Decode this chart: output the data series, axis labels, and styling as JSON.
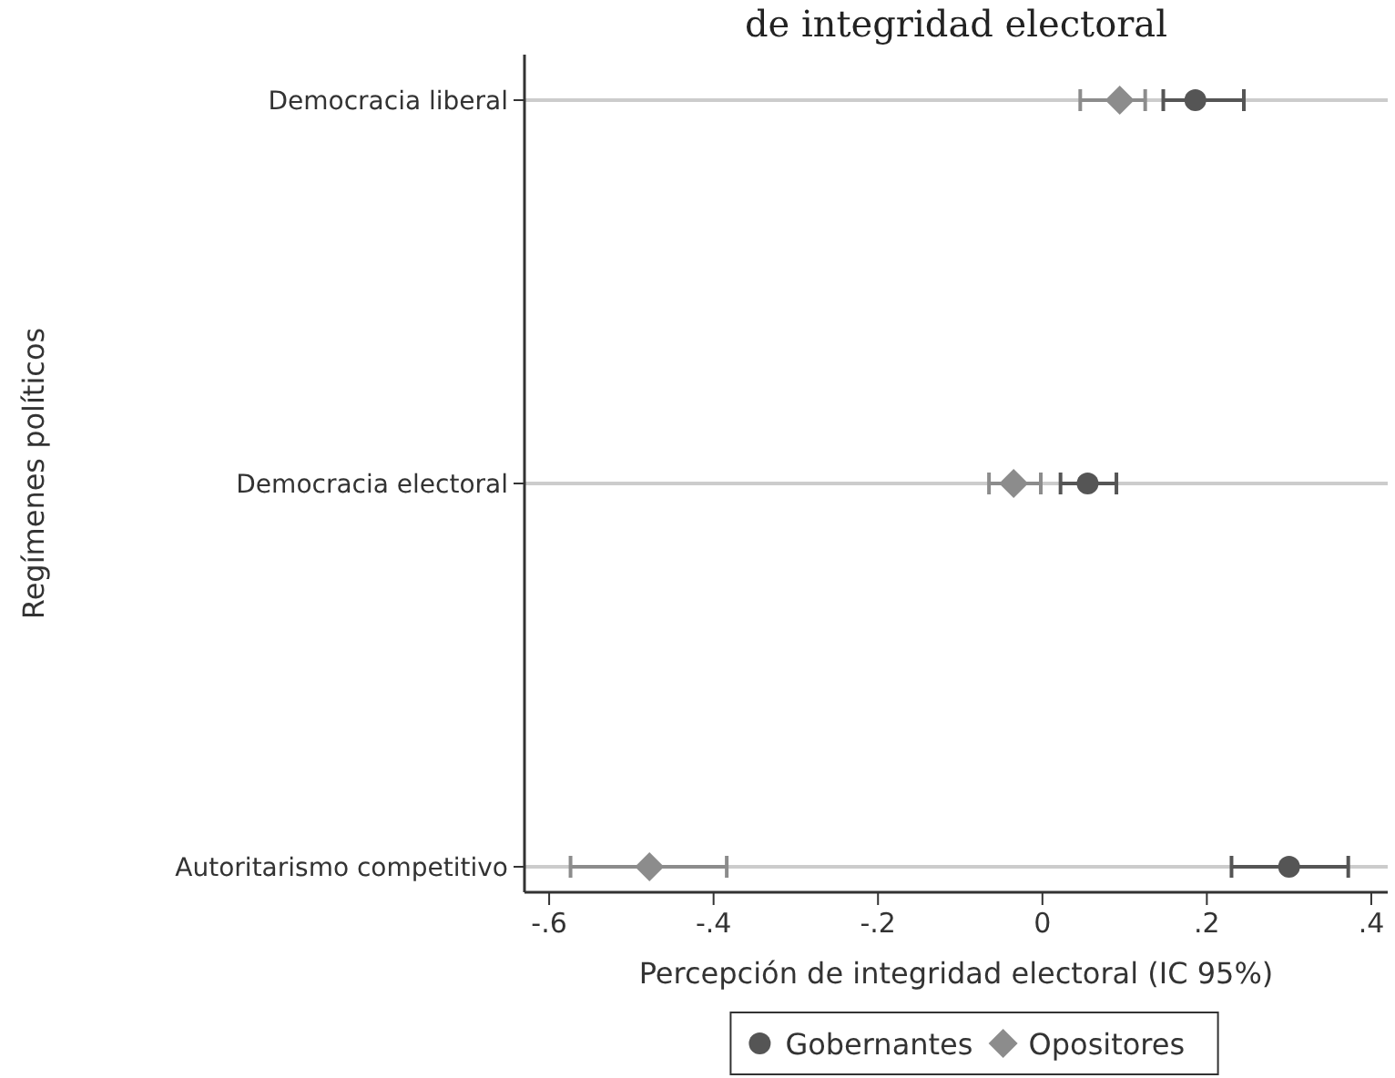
{
  "chart_data": {
    "type": "scatter",
    "orientation": "horizontal",
    "title": "de integridad electoral",
    "xlabel": "Percepción de integridad electoral (IC 95%)",
    "ylabel": "Regímenes políticos",
    "categories": [
      "Democracia liberal",
      "Democracia electoral",
      "Autoritarismo  competitivo"
    ],
    "series": [
      {
        "name": "Gobernantes",
        "color": "#555555",
        "marker": "circle",
        "values": [
          0.186,
          0.055,
          0.3
        ],
        "errors": [
          [
            0.147,
            0.245
          ],
          [
            0.022,
            0.09
          ],
          [
            0.23,
            0.372
          ]
        ]
      },
      {
        "name": "Opositores",
        "color": "#8c8c8c",
        "marker": "diamond",
        "values": [
          0.094,
          -0.035,
          -0.478
        ],
        "errors": [
          [
            0.046,
            0.125
          ],
          [
            -0.065,
            -0.002
          ],
          [
            -0.574,
            -0.384
          ]
        ]
      }
    ],
    "xlim": [
      -0.63,
      0.42
    ],
    "xticks": [
      {
        "value": -0.6,
        "label": "-.6"
      },
      {
        "value": -0.4,
        "label": "-.4"
      },
      {
        "value": -0.2,
        "label": "-.2"
      },
      {
        "value": 0,
        "label": "0"
      },
      {
        "value": 0.2,
        "label": ".2"
      },
      {
        "value": 0.4,
        "label": ".4"
      }
    ],
    "grid": "y",
    "legend": "bottom"
  }
}
